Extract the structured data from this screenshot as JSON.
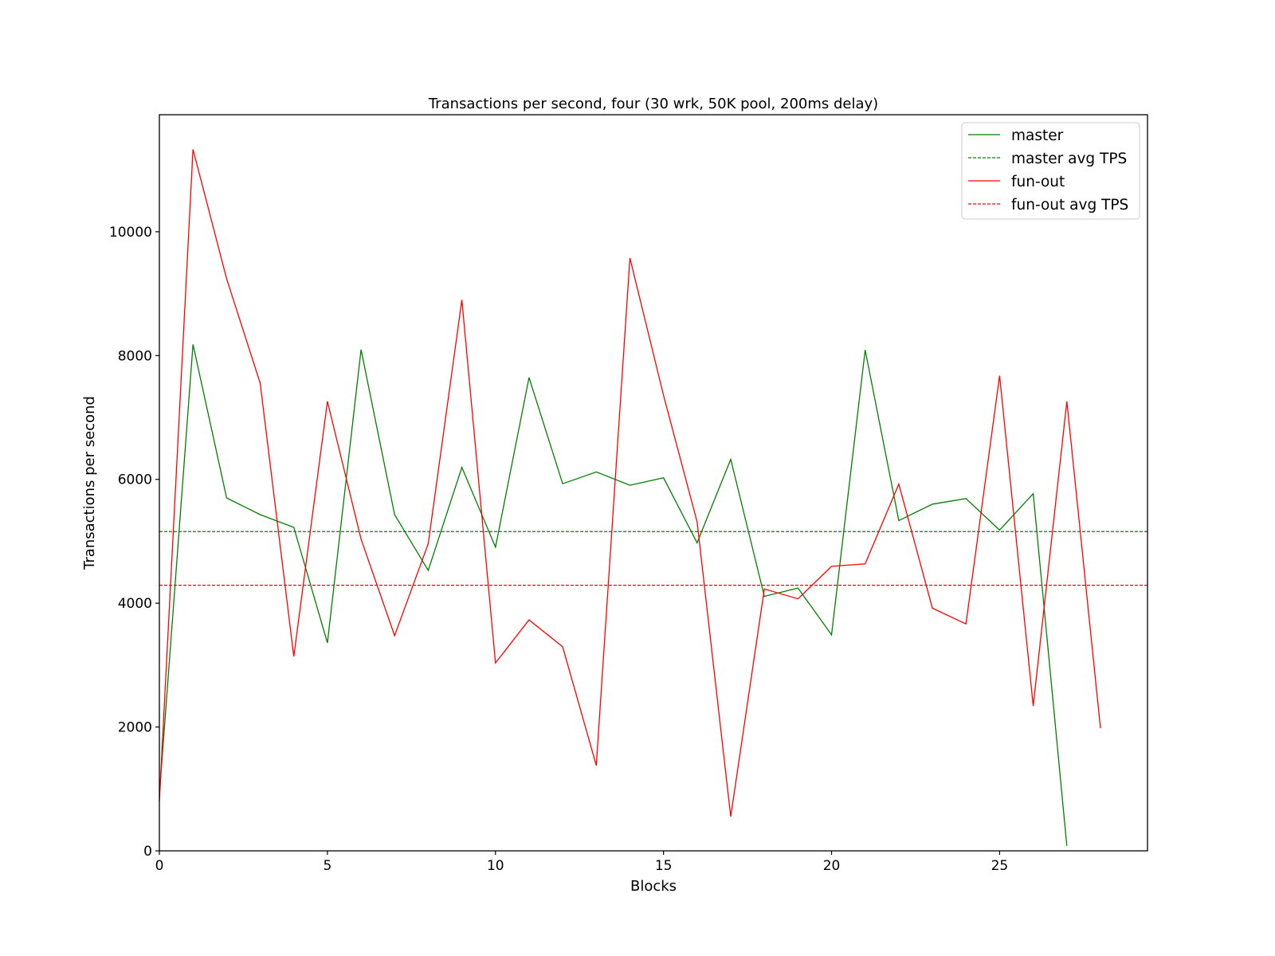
{
  "chart_data": {
    "type": "line",
    "title": "Transactions per second, four (30 wrk, 50K pool, 200ms delay)",
    "xlabel": "Blocks",
    "ylabel": "Transactions per second",
    "xlim": [
      0,
      29.4
    ],
    "ylim": [
      0,
      11890
    ],
    "xticks": [
      0,
      5,
      10,
      15,
      20,
      25
    ],
    "yticks": [
      0,
      2000,
      4000,
      6000,
      8000,
      10000
    ],
    "grid": false,
    "legend_position": "upper right",
    "series": [
      {
        "name": "master",
        "color": "#008000",
        "style": "solid",
        "x": [
          0,
          1,
          2,
          3,
          4,
          5,
          6,
          7,
          8,
          9,
          10,
          11,
          12,
          13,
          14,
          15,
          16,
          17,
          18,
          19,
          20,
          21,
          22,
          23,
          24,
          25,
          26,
          27
        ],
        "values": [
          900,
          8180,
          5700,
          5430,
          5225,
          3360,
          8095,
          5430,
          4530,
          6195,
          4905,
          7645,
          5930,
          6120,
          5905,
          6025,
          4975,
          6325,
          4110,
          4245,
          3490,
          8090,
          5335,
          5600,
          5690,
          5180,
          5770,
          80
        ]
      },
      {
        "name": "master avg TPS",
        "color": "#008000",
        "style": "dashed",
        "value": 5157
      },
      {
        "name": "fun-out",
        "color": "#ff0000",
        "style": "solid",
        "x": [
          0,
          1,
          2,
          3,
          4,
          5,
          6,
          7,
          8,
          9,
          10,
          11,
          12,
          13,
          14,
          15,
          16,
          17,
          18,
          19,
          20,
          21,
          22,
          23,
          24,
          25,
          26,
          27,
          28
        ],
        "values": [
          800,
          11330,
          9240,
          7555,
          3140,
          7260,
          5035,
          3475,
          4960,
          8900,
          3035,
          3730,
          3295,
          1380,
          9575,
          7355,
          5315,
          555,
          4230,
          4070,
          4595,
          4635,
          5925,
          3920,
          3665,
          7675,
          2340,
          7260,
          1980
        ]
      },
      {
        "name": "fun-out avg TPS",
        "color": "#ff0000",
        "style": "dashed",
        "value": 4290
      }
    ]
  },
  "legend": {
    "items": [
      {
        "label": "master"
      },
      {
        "label": "master avg TPS"
      },
      {
        "label": "fun-out"
      },
      {
        "label": "fun-out avg TPS"
      }
    ]
  }
}
